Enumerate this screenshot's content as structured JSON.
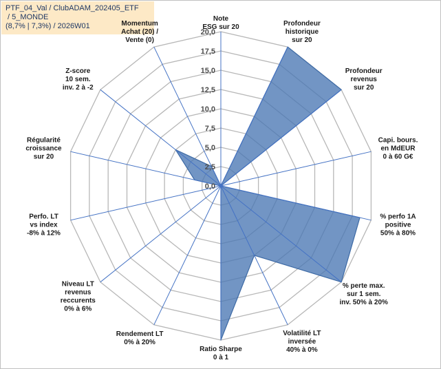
{
  "title_lines": [
    "PTF_04_Val / ClubADAM_202405_ETF",
    " / 5_MONDE",
    "(8,7% | 7,3%) / 2026W01"
  ],
  "chart_data": {
    "type": "radar",
    "title": "PTF_04_Val / ClubADAM_202405_ETF / 5_MONDE (8,7% | 7,3%) / 2026W01",
    "rmin": 0,
    "rmax": 20,
    "ticks": [
      "0,0",
      "2,5",
      "5,0",
      "7,5",
      "10,0",
      "12,5",
      "15,0",
      "17,5",
      "20,0"
    ],
    "grid": true,
    "axes": [
      {
        "label": [
          "Note",
          "ESG sur 20"
        ],
        "value": 0
      },
      {
        "label": [
          "Profondeur",
          "historique",
          "sur 20"
        ],
        "value": 20
      },
      {
        "label": [
          "Profondeur",
          "revenus",
          "sur 20"
        ],
        "value": 20
      },
      {
        "label": [
          "Capi. bours.",
          "en MdEUR",
          "0 à 60 G€"
        ],
        "value": 0
      },
      {
        "label": [
          "% perfo 1A",
          "positive",
          "50% à 80%"
        ],
        "value": 18.5
      },
      {
        "label": [
          "% perte max.",
          "sur 1 sem.",
          "inv. 50% à 20%"
        ],
        "value": 20
      },
      {
        "label": [
          "Volatilité LT",
          "inversée",
          "40% à 0%"
        ],
        "value": 10
      },
      {
        "label": [
          "Ratio Sharpe",
          "0 à 1"
        ],
        "value": 20
      },
      {
        "label": [
          "Rendement LT",
          "0% à 20%"
        ],
        "value": 0
      },
      {
        "label": [
          "Niveau LT",
          "revenus",
          "reccurents",
          "0% à 6%"
        ],
        "value": 0
      },
      {
        "label": [
          "Perfo. LT",
          "vs index",
          "-8% à 12%"
        ],
        "value": 0
      },
      {
        "label": [
          "Régularité",
          "croissance",
          "sur 20"
        ],
        "value": 3.5
      },
      {
        "label": [
          "Z-score",
          "10 sem.",
          "inv. 2 à -2"
        ],
        "value": 7.5
      },
      {
        "label": [
          "Momentum",
          "Achat (20) /",
          "Vente (0)"
        ],
        "value": 2.8
      }
    ],
    "series": [
      {
        "values": [
          0,
          20,
          20,
          0,
          18.5,
          20,
          10,
          20,
          0,
          0,
          0,
          3.5,
          7.5,
          2.8
        ]
      }
    ],
    "colors": {
      "fill": "#4a77b3",
      "stroke": "#3d6aa5",
      "grid": "#b7b7b7",
      "spoke": "#4472c4"
    }
  }
}
